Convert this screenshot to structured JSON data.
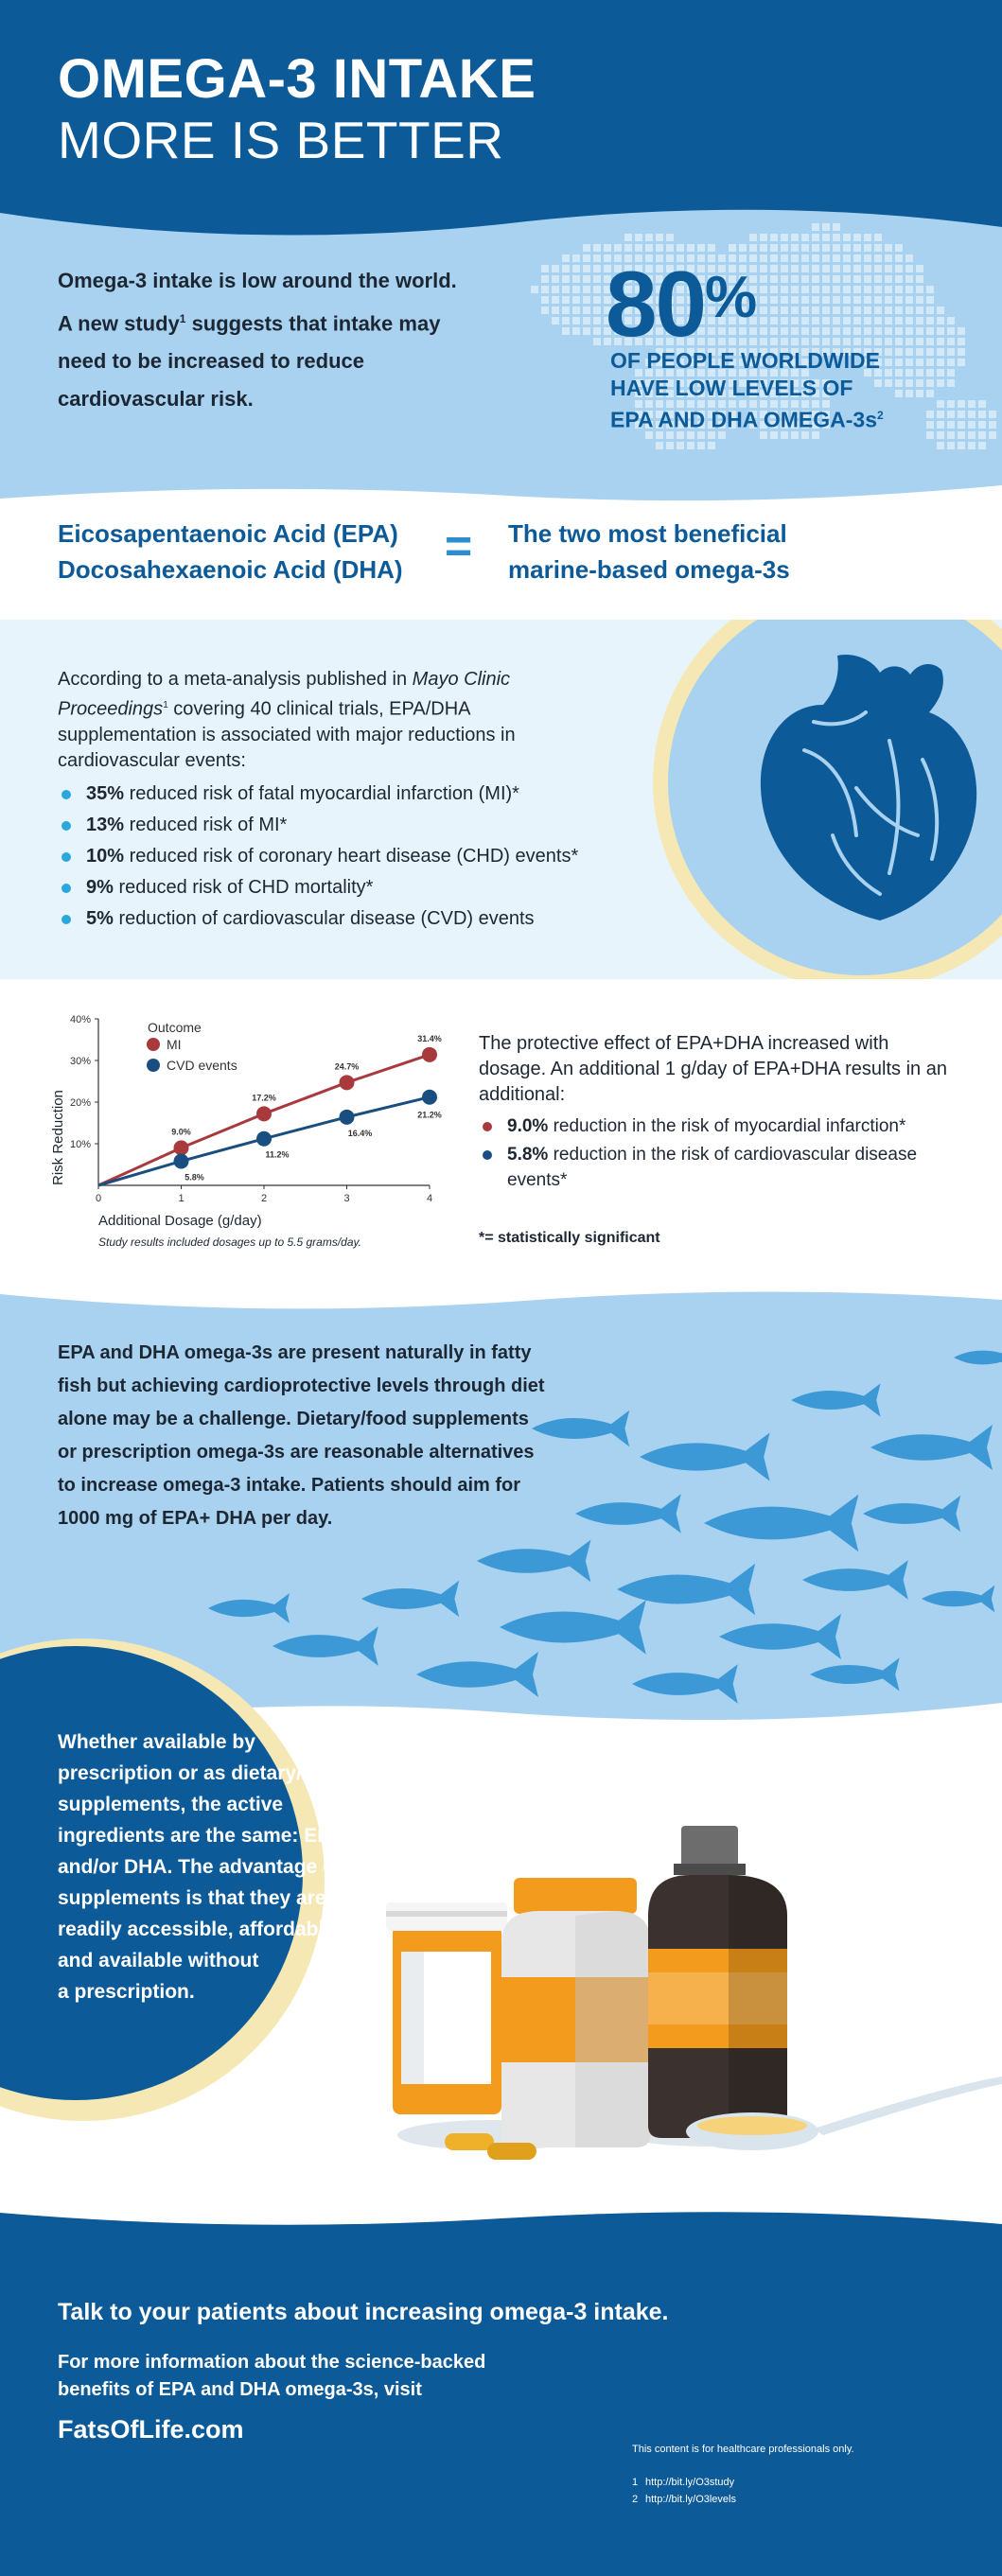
{
  "header": {
    "title_line1": "OMEGA-3 INTAKE",
    "title_line2": "MORE IS BETTER"
  },
  "intro": {
    "text_line1": "Omega-3 intake is low around the world.",
    "text_line2_pre": "A new study",
    "text_line2_sup": "1",
    "text_line2_post": " suggests that intake may",
    "text_line3": "need to be increased to reduce",
    "text_line4": "cardiovascular risk.",
    "stat_value": "80",
    "stat_unit": "%",
    "stat_caption_line1": "OF PEOPLE WORLDWIDE",
    "stat_caption_line2": "HAVE LOW LEVELS OF",
    "stat_caption_line3": "EPA AND DHA OMEGA-3s",
    "stat_caption_sup": "2"
  },
  "definition": {
    "acid1": "Eicosapentaenoic Acid (EPA)",
    "acid2": "Docosahexaenoic Acid (DHA)",
    "equals": "=",
    "benefit_line1": "The two most beneficial",
    "benefit_line2": "marine-based omega-3s"
  },
  "meta_analysis": {
    "intro_pre": "According to a meta-analysis published in ",
    "journal": "Mayo Clinic Proceedings",
    "intro_sup": "1",
    "intro_post": " covering 40 clinical trials, EPA/DHA supplementation is associated with major reductions in cardiovascular events:",
    "bullets": [
      {
        "value": "35%",
        "text": " reduced risk of fatal myocardial infarction (MI)*"
      },
      {
        "value": "13%",
        "text": " reduced risk of MI*"
      },
      {
        "value": "10%",
        "text": " reduced risk of coronary heart disease (CHD) events*"
      },
      {
        "value": "9%",
        "text": " reduced risk of CHD mortality*"
      },
      {
        "value": "5%",
        "text": " reduction of cardiovascular disease (CVD) events"
      }
    ]
  },
  "chart_data": {
    "type": "line",
    "x": [
      0,
      1,
      2,
      3,
      4
    ],
    "series": [
      {
        "name": "MI",
        "values": [
          0,
          9.0,
          17.2,
          24.7,
          31.4
        ],
        "labels": [
          "",
          "9.0%",
          "17.2%",
          "24.7%",
          "31.4%"
        ],
        "color": "#a83a3e"
      },
      {
        "name": "CVD events",
        "values": [
          0,
          5.8,
          11.2,
          16.4,
          21.2
        ],
        "labels": [
          "",
          "5.8%",
          "11.2%",
          "16.4%",
          "21.2%"
        ],
        "color": "#1a4e80"
      }
    ],
    "legend_title": "Outcome",
    "legend_position": "top-left",
    "xlabel": "Additional Dosage (g/day)",
    "ylabel": "Risk Reduction",
    "x_ticks": [
      "0",
      "1",
      "2",
      "3",
      "4"
    ],
    "y_ticks": [
      "10%",
      "20%",
      "30%",
      "40%"
    ],
    "xlim": [
      0,
      4
    ],
    "ylim": [
      0,
      40
    ],
    "grid": false,
    "note": "Study results included dosages up to 5.5 grams/day."
  },
  "dosage": {
    "text": "The protective effect of EPA+DHA increased with dosage. An additional 1 g/day of EPA+DHA results in an additional:",
    "bullets": [
      {
        "value": "9.0%",
        "text": " reduction in the risk of myocardial infarction*"
      },
      {
        "value": "5.8%",
        "text": " reduction in the risk of cardiovascular disease events*"
      }
    ],
    "footnote": "*= statistically significant"
  },
  "fish": {
    "line1": "EPA and DHA omega-3s are present naturally in fatty",
    "line2": "fish but achieving cardioprotective levels through diet",
    "line3": "alone may be a challenge. Dietary/food supplements",
    "line4": "or prescription omega-3s are reasonable alternatives",
    "line5": "to increase omega-3 intake. Patients should aim for",
    "line6": "1000 mg of EPA+ DHA per day."
  },
  "supplements": {
    "line1": "Whether available by",
    "line2": "prescription or as dietary/food",
    "line3": "supplements, the active",
    "line4": "ingredients are the same: EPA",
    "line5": "and/or DHA. The advantage of",
    "line6": "supplements is that they are",
    "line7": "readily accessible, affordable",
    "line8": "and available without",
    "line9": "a prescription."
  },
  "footer": {
    "talk": "Talk to your patients about increasing omega-3 intake.",
    "more_line1": "For more information about the science-backed",
    "more_line2": "benefits of EPA and DHA omega-3s, visit",
    "site": "FatsOfLife.com",
    "hcp_note": "This content is for healthcare professionals only.",
    "refs": [
      {
        "num": "1",
        "url": "http://bit.ly/O3study"
      },
      {
        "num": "2",
        "url": "http://bit.ly/O3levels"
      }
    ]
  },
  "colors": {
    "navy": "#0c5a98",
    "light_blue": "#a8d2f0",
    "accent_blue": "#2a8ed1",
    "mi_red": "#a83a3e",
    "cvd_blue": "#1a4e80",
    "cream": "#f5e8b4"
  },
  "icons": [
    "world-map-icon",
    "heart-icon",
    "fish-school-icon",
    "bottle-icon",
    "capsule-icon",
    "spoon-icon"
  ]
}
